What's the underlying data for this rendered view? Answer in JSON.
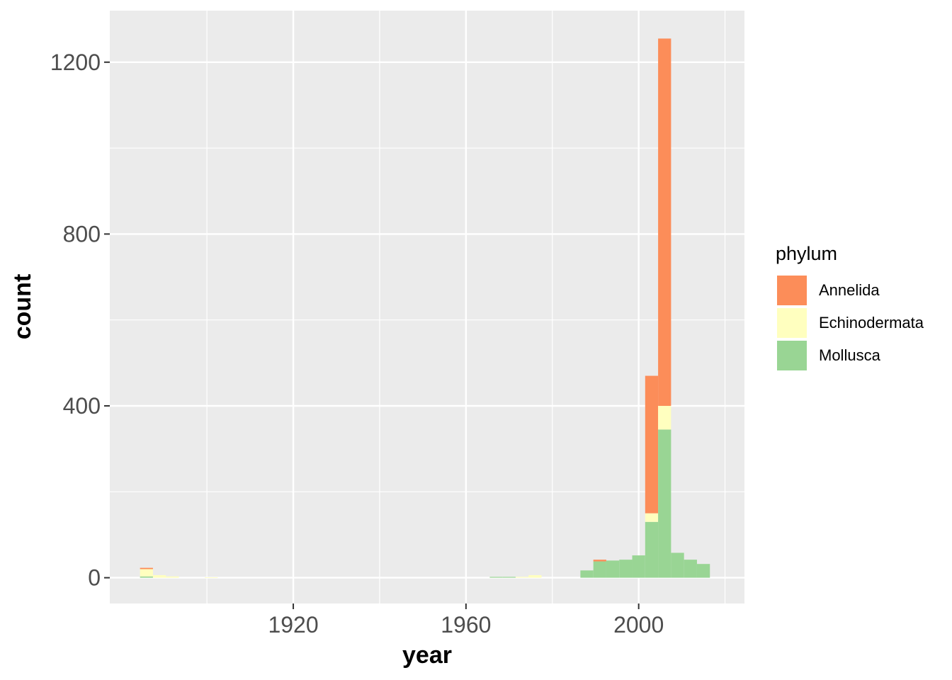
{
  "chart_data": {
    "type": "bar",
    "stacked": true,
    "xlabel": "year",
    "ylabel": "count",
    "xlim": [
      1877.5,
      2024.5
    ],
    "ylim": [
      -60,
      1320
    ],
    "x_major_ticks": [
      1920,
      1960,
      2000
    ],
    "x_minor_ticks": [
      1900,
      1940,
      1980,
      2020
    ],
    "y_major_ticks": [
      0,
      400,
      800,
      1200
    ],
    "y_minor_ticks": [
      200,
      600,
      1000
    ],
    "x_tick_labels": [
      "1920",
      "1960",
      "2000"
    ],
    "y_tick_labels": [
      "0",
      "400",
      "800",
      "1200"
    ],
    "grid": true,
    "legend": {
      "title": "phylum",
      "position": "right"
    },
    "bin_width": 3,
    "bins": [
      1886,
      1889,
      1892,
      1895,
      1898,
      1901,
      1904,
      1907,
      1910,
      1913,
      1916,
      1919,
      1922,
      1925,
      1928,
      1931,
      1934,
      1937,
      1940,
      1943,
      1946,
      1949,
      1952,
      1955,
      1958,
      1961,
      1964,
      1967,
      1970,
      1973,
      1976,
      1979,
      1982,
      1985,
      1988,
      1991,
      1994,
      1997,
      2000,
      2003,
      2006,
      2009,
      2012,
      2015
    ],
    "series": [
      {
        "name": "Mollusca",
        "color": "#99d594",
        "values": [
          3,
          0,
          0,
          0,
          0,
          0,
          0,
          0,
          0,
          0,
          0,
          0,
          0,
          0,
          0,
          0,
          0,
          0,
          0,
          0,
          0,
          0,
          0,
          0,
          0,
          0,
          0,
          2,
          2,
          0,
          0,
          0,
          0,
          0,
          17,
          38,
          40,
          42,
          52,
          130,
          345,
          58,
          42,
          32
        ]
      },
      {
        "name": "Echinodermata",
        "color": "#ffffbf",
        "values": [
          17,
          6,
          3,
          0,
          0,
          1,
          0,
          0,
          0,
          0,
          0,
          0,
          0,
          0,
          0,
          0,
          0,
          0,
          0,
          0,
          0,
          0,
          0,
          0,
          0,
          0,
          0,
          0,
          0,
          2,
          6,
          0,
          0,
          0,
          0,
          0,
          0,
          0,
          0,
          20,
          55,
          0,
          0,
          0
        ]
      },
      {
        "name": "Annelida",
        "color": "#fc8d59",
        "values": [
          3,
          0,
          0,
          0,
          0,
          0,
          0,
          0,
          0,
          0,
          0,
          0,
          0,
          0,
          0,
          0,
          0,
          0,
          0,
          0,
          0,
          0,
          0,
          0,
          0,
          0,
          0,
          0,
          0,
          0,
          0,
          0,
          0,
          0,
          0,
          4,
          0,
          0,
          0,
          320,
          855,
          0,
          0,
          0
        ]
      }
    ]
  }
}
